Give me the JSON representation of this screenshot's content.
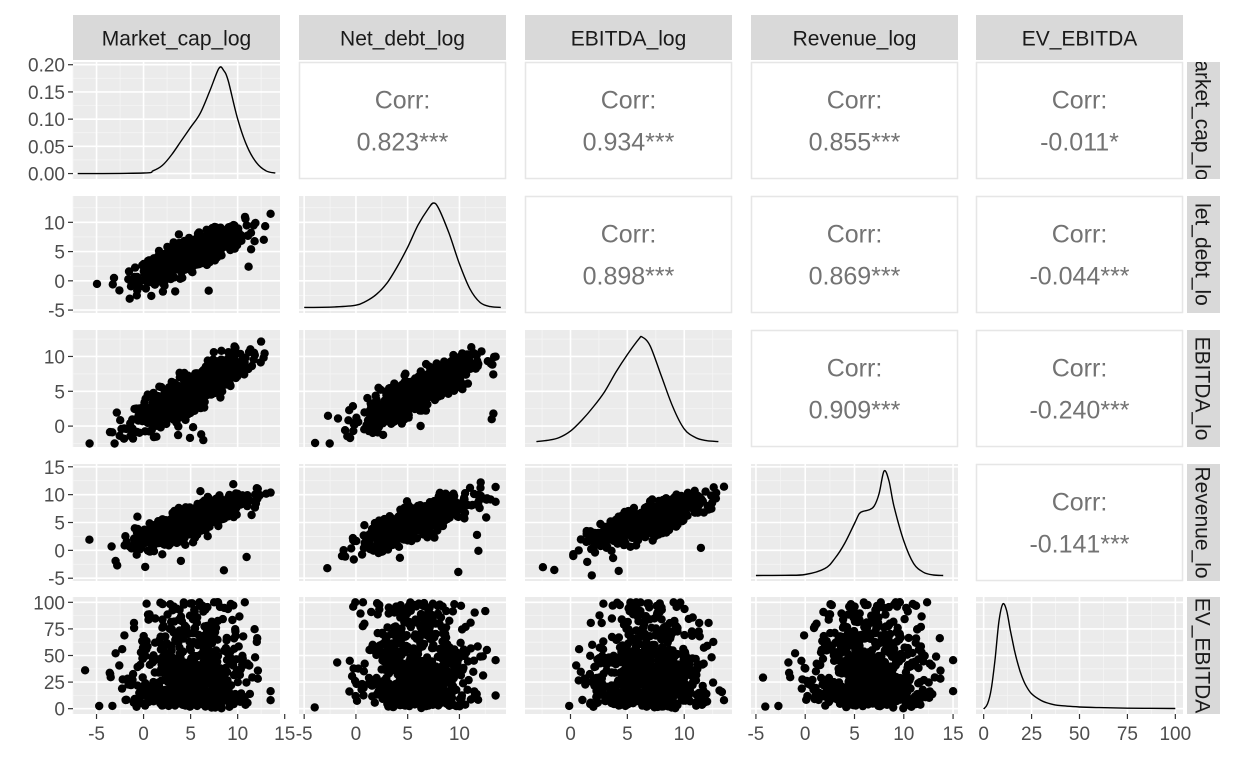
{
  "chart_data": {
    "type": "scatter",
    "variables": [
      "Market_cap_log",
      "Net_debt_log",
      "EBITDA_log",
      "Revenue_log",
      "EV_EBITDA"
    ],
    "row_strip_labels": [
      "arket_cap_lo",
      "let_debt_lo",
      "EBITDA_lo",
      "Revenue_lo",
      "EV_EBITDA"
    ],
    "x_ranges": [
      [
        -7.5,
        14.5
      ],
      [
        -5.5,
        14.5
      ],
      [
        -4,
        14.2
      ],
      [
        -5.5,
        15.5
      ],
      [
        -4,
        104
      ]
    ],
    "x_ticks": [
      {
        "values": [
          -5,
          0,
          5,
          10,
          15
        ],
        "labels": [
          "-5",
          "0",
          "5",
          "10",
          "15"
        ]
      },
      {
        "values": [
          -5,
          0,
          5,
          10
        ],
        "labels": [
          "-5",
          "0",
          "5",
          "10"
        ]
      },
      {
        "values": [
          0,
          5,
          10
        ],
        "labels": [
          "0",
          "5",
          "10"
        ]
      },
      {
        "values": [
          -5,
          0,
          5,
          10,
          15
        ],
        "labels": [
          "-5",
          "0",
          "5",
          "10",
          "15"
        ]
      },
      {
        "values": [
          0,
          25,
          50,
          75,
          100
        ],
        "labels": [
          "0",
          "25",
          "50",
          "75",
          "100"
        ]
      }
    ],
    "y_ranges": [
      [
        -0.01,
        0.205
      ],
      [
        -5.5,
        14.5
      ],
      [
        -3,
        13.8
      ],
      [
        -5.5,
        15.5
      ],
      [
        -5,
        105
      ]
    ],
    "y_ticks": [
      {
        "values": [
          0,
          0.05,
          0.1,
          0.15,
          0.2
        ],
        "labels": [
          "0.00",
          "0.05",
          "0.10",
          "0.15",
          "0.20"
        ]
      },
      {
        "values": [
          -5,
          0,
          5,
          10
        ],
        "labels": [
          "-5",
          "0",
          "5",
          "10"
        ]
      },
      {
        "values": [
          0,
          5,
          10
        ],
        "labels": [
          "0",
          "5",
          "10"
        ]
      },
      {
        "values": [
          -5,
          0,
          5,
          10,
          15
        ],
        "labels": [
          "-5",
          "0",
          "5",
          "10",
          "15"
        ]
      },
      {
        "values": [
          0,
          25,
          50,
          75,
          100
        ],
        "labels": [
          "0",
          "25",
          "50",
          "75",
          "100"
        ]
      }
    ],
    "correlations": [
      {
        "row": 0,
        "col": 1,
        "label": "Corr:",
        "value": "0.823***"
      },
      {
        "row": 0,
        "col": 2,
        "label": "Corr:",
        "value": "0.934***"
      },
      {
        "row": 0,
        "col": 3,
        "label": "Corr:",
        "value": "0.855***"
      },
      {
        "row": 0,
        "col": 4,
        "label": "Corr:",
        "value": "-0.011*"
      },
      {
        "row": 1,
        "col": 2,
        "label": "Corr:",
        "value": "0.898***"
      },
      {
        "row": 1,
        "col": 3,
        "label": "Corr:",
        "value": "0.869***"
      },
      {
        "row": 1,
        "col": 4,
        "label": "Corr:",
        "value": "-0.044***"
      },
      {
        "row": 2,
        "col": 3,
        "label": "Corr:",
        "value": "0.909***"
      },
      {
        "row": 2,
        "col": 4,
        "label": "Corr:",
        "value": "-0.240***"
      },
      {
        "row": 3,
        "col": 4,
        "label": "Corr:",
        "value": "-0.141***"
      }
    ],
    "density_curves": [
      {
        "variable": "Market_cap_log",
        "x": [
          -7,
          0,
          1,
          2,
          3,
          4,
          5,
          6,
          7,
          8,
          8.5,
          9,
          10,
          11,
          12,
          13,
          14
        ],
        "y": [
          0,
          0.001,
          0.005,
          0.015,
          0.035,
          0.06,
          0.085,
          0.11,
          0.15,
          0.193,
          0.19,
          0.17,
          0.1,
          0.05,
          0.02,
          0.005,
          0.001
        ]
      },
      {
        "variable": "Net_debt_log",
        "x": [
          -5,
          -2,
          0,
          1,
          2,
          3,
          4,
          5,
          6,
          7,
          7.5,
          8,
          9,
          10,
          11,
          12,
          13,
          14
        ],
        "y": [
          0.002,
          0.004,
          0.01,
          0.025,
          0.05,
          0.09,
          0.15,
          0.22,
          0.3,
          0.36,
          0.38,
          0.36,
          0.27,
          0.16,
          0.07,
          0.02,
          0.005,
          0.002
        ]
      },
      {
        "variable": "EBITDA_log",
        "x": [
          -3,
          -2,
          -1,
          0,
          1,
          2,
          3,
          4,
          5,
          6,
          6.3,
          7,
          8,
          9,
          10,
          11,
          12,
          13
        ],
        "y": [
          0.001,
          0.004,
          0.01,
          0.025,
          0.05,
          0.08,
          0.115,
          0.16,
          0.2,
          0.235,
          0.24,
          0.22,
          0.15,
          0.08,
          0.03,
          0.01,
          0.003,
          0.001
        ]
      },
      {
        "variable": "Revenue_log",
        "x": [
          -5,
          -2,
          0,
          2,
          3,
          4,
          5,
          5.5,
          6,
          6.5,
          7,
          7.5,
          8,
          8.5,
          9,
          10,
          11,
          12,
          13,
          14
        ],
        "y": [
          0.002,
          0.003,
          0.006,
          0.03,
          0.07,
          0.13,
          0.21,
          0.25,
          0.26,
          0.265,
          0.28,
          0.33,
          0.42,
          0.38,
          0.28,
          0.14,
          0.05,
          0.015,
          0.004,
          0.002
        ]
      },
      {
        "variable": "EV_EBITDA",
        "x": [
          0,
          2,
          4,
          6,
          8,
          10,
          12,
          14,
          16,
          18,
          20,
          22,
          25,
          30,
          35,
          40,
          50,
          60,
          75,
          100
        ],
        "y": [
          0.0,
          0.003,
          0.012,
          0.03,
          0.052,
          0.062,
          0.058,
          0.046,
          0.035,
          0.026,
          0.019,
          0.014,
          0.009,
          0.005,
          0.003,
          0.002,
          0.0012,
          0.0008,
          0.0005,
          0.0003
        ]
      }
    ],
    "scatter_shape": {
      "note_free": true,
      "ranges": [
        {
          "row": 1,
          "col": 0,
          "x": [
            -6.5,
            13.5
          ],
          "y": [
            -4.5,
            13.5
          ],
          "slope": 0.82
        },
        {
          "row": 2,
          "col": 0,
          "x": [
            -6.5,
            13.5
          ],
          "y": [
            -2.5,
            12.5
          ],
          "slope": 0.93
        },
        {
          "row": 2,
          "col": 1,
          "x": [
            -4.5,
            13.5
          ],
          "y": [
            -2.5,
            12.5
          ],
          "slope": 0.9
        },
        {
          "row": 3,
          "col": 0,
          "x": [
            -6.5,
            13.5
          ],
          "y": [
            -4.5,
            15
          ],
          "slope": 0.85
        },
        {
          "row": 3,
          "col": 1,
          "x": [
            -4.5,
            13.5
          ],
          "y": [
            -4.5,
            15
          ],
          "slope": 0.87
        },
        {
          "row": 3,
          "col": 2,
          "x": [
            -3,
            13.5
          ],
          "y": [
            -4.5,
            15
          ],
          "slope": 0.91
        },
        {
          "row": 4,
          "col": 0,
          "x": [
            -6.5,
            13.5
          ],
          "y": [
            0,
            100
          ],
          "slope": 0
        },
        {
          "row": 4,
          "col": 1,
          "x": [
            -4.5,
            13.5
          ],
          "y": [
            0,
            100
          ],
          "slope": 0
        },
        {
          "row": 4,
          "col": 2,
          "x": [
            -3,
            13.5
          ],
          "y": [
            0,
            100
          ],
          "slope": -0.3
        },
        {
          "row": 4,
          "col": 3,
          "x": [
            -4.5,
            15
          ],
          "y": [
            0,
            100
          ],
          "slope": -0.2
        }
      ]
    },
    "grid": true,
    "colors": {
      "panel_bg": "#ebebeb",
      "grid_major": "#ffffff",
      "grid_minor": "#f5f5f5",
      "strip_bg": "#d9d9d9",
      "points": "#000000",
      "corr_text": "#737373",
      "tick_text": "#4d4d4d",
      "strip_text": "#1a1a1a"
    }
  }
}
